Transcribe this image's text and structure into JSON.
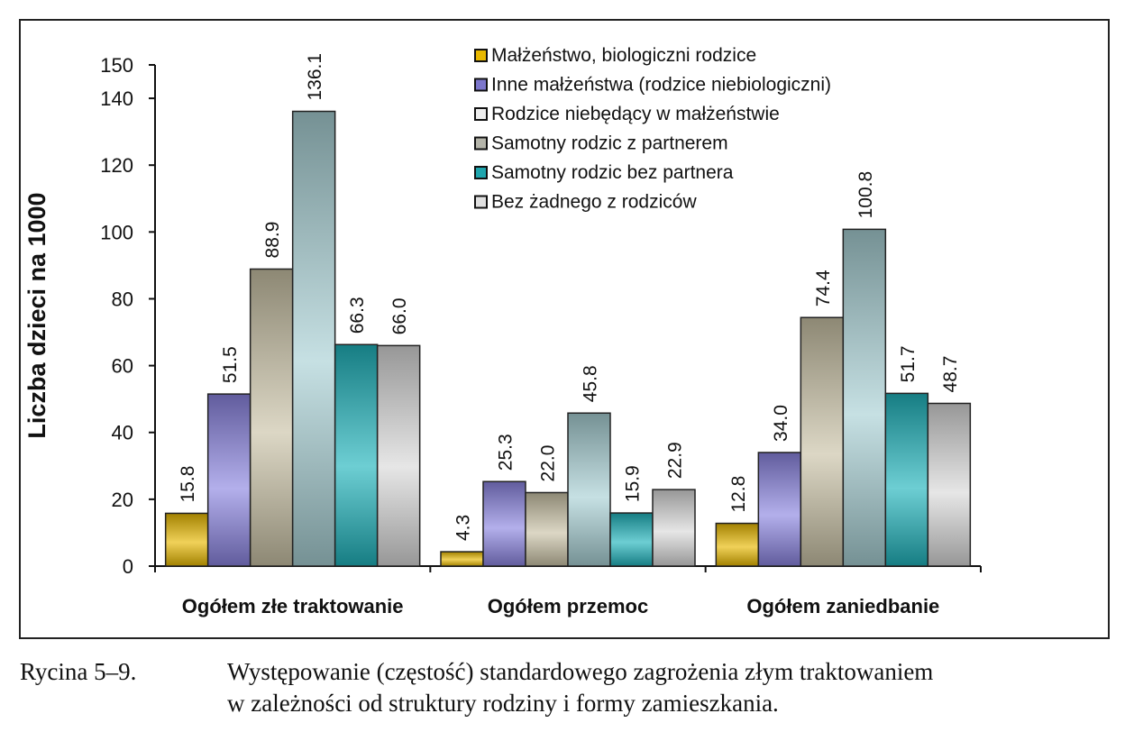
{
  "chart_data": {
    "type": "bar",
    "ylabel": "Liczba dzieci na 1000",
    "xlabel": "",
    "ylim": [
      0,
      150
    ],
    "yticks": [
      0,
      20,
      40,
      60,
      80,
      100,
      120,
      140,
      150
    ],
    "grid": false,
    "legend_placement": "top-right",
    "categories": [
      "Ogółem złe traktowanie",
      "Ogółem przemoc",
      "Ogółem zaniedbanie"
    ],
    "series": [
      {
        "name": "Małżeństwo, biologiczni rodzice",
        "values": [
          15.8,
          4.3,
          12.8
        ],
        "labels": [
          "15.8",
          "4.3",
          "12.8"
        ],
        "color": "#e8b800",
        "legend_color": "#e8b800"
      },
      {
        "name": "Inne małżeństwa (rodzice niebiologiczni)",
        "values": [
          51.5,
          25.3,
          34.0
        ],
        "labels": [
          "51.5",
          "25.3",
          "34.0"
        ],
        "color": "#8a84e0",
        "legend_color": "#7c76cc"
      },
      {
        "name": "Rodzice niebędący w małżeństwie",
        "values": [
          88.9,
          22.0,
          74.4
        ],
        "labels": [
          "88.9",
          "22.0",
          "74.4"
        ],
        "color": "#c9c2a6",
        "legend_color": "#eeeeee"
      },
      {
        "name": "Samotny rodzic z partnerem",
        "values": [
          136.1,
          45.8,
          100.8
        ],
        "labels": [
          "136.1",
          "45.8",
          "100.8"
        ],
        "color": "#a7cfd4",
        "legend_color": "#b5b5aa"
      },
      {
        "name": "Samotny rodzic bez partnera",
        "values": [
          66.3,
          15.9,
          51.7
        ],
        "labels": [
          "66.3",
          "15.9",
          "51.7"
        ],
        "color": "#1fb3bb",
        "legend_color": "#1fa5ad"
      },
      {
        "name": "Bez żadnego z rodziców",
        "values": [
          66.0,
          22.9,
          48.7
        ],
        "labels": [
          "66.0",
          "22.9",
          "48.7"
        ],
        "color": "#d8d8d8",
        "legend_color": "#e0e0e0"
      }
    ]
  },
  "caption": {
    "label": "Rycina 5–9.",
    "line1": "Występowanie (częstość) standardowego zagrożenia złym traktowaniem",
    "line2": "w zależności od struktury rodziny i formy zamieszkania."
  }
}
